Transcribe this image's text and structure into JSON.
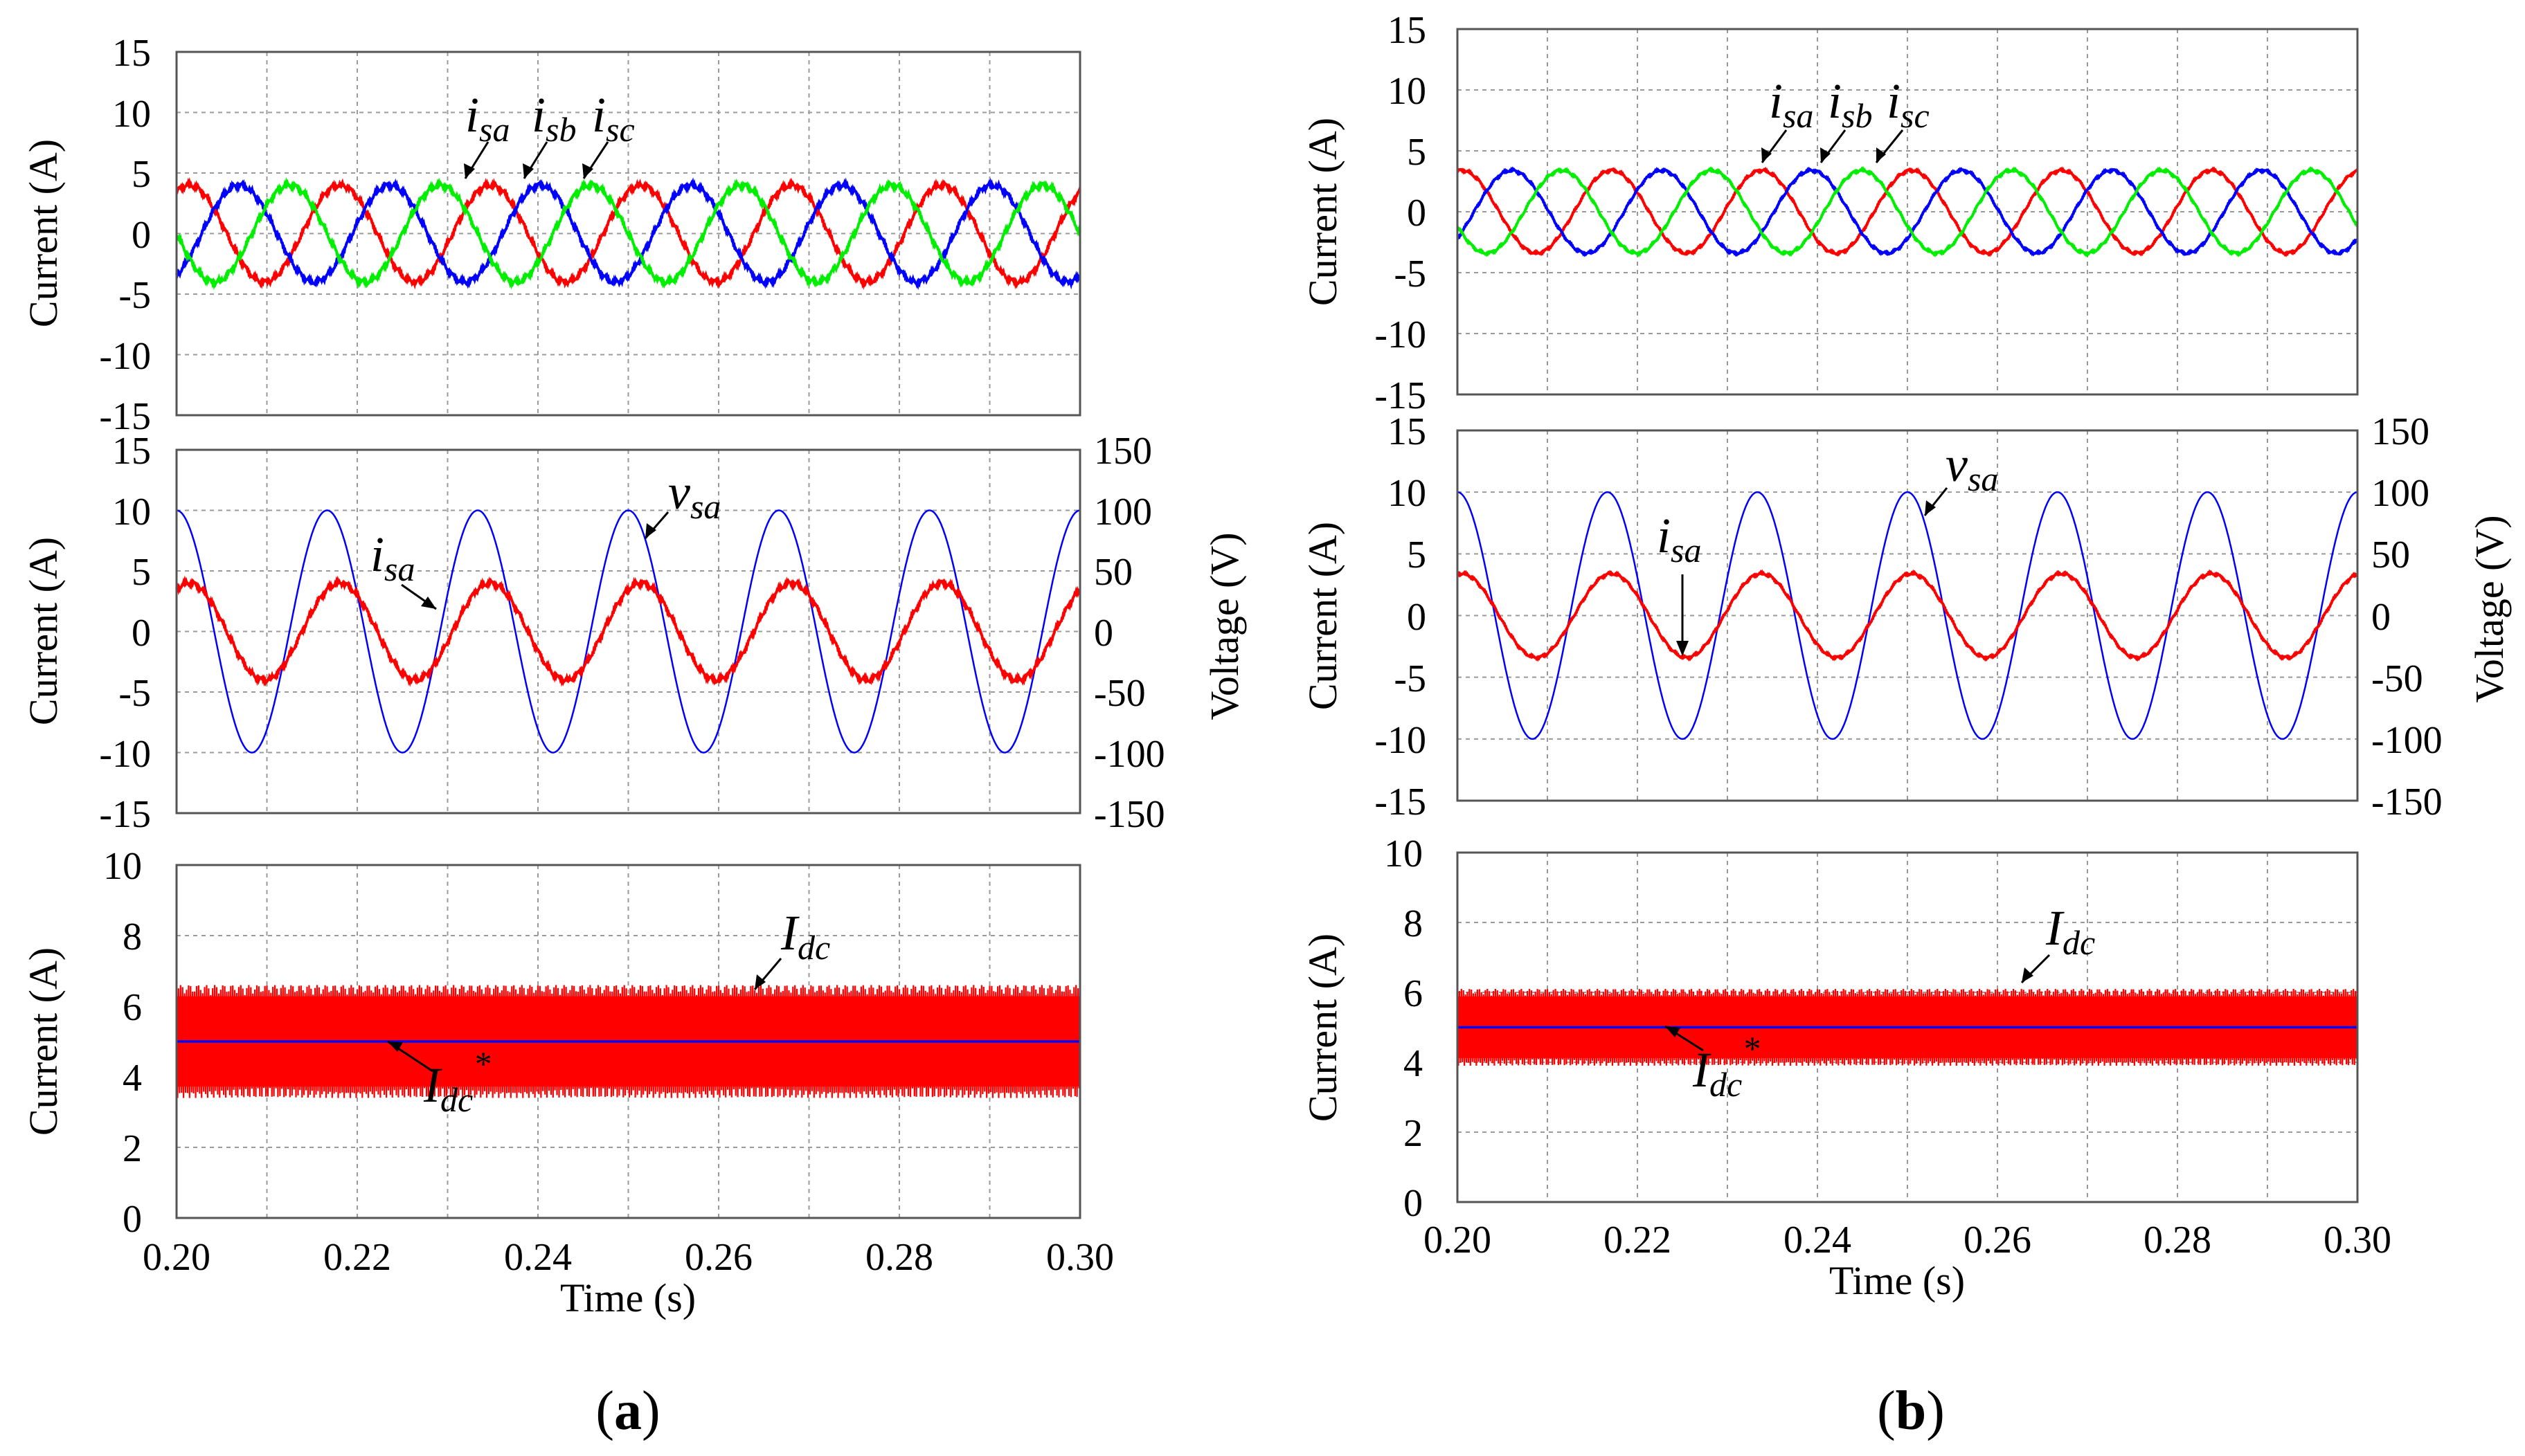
{
  "colors": {
    "red": "#ff0000",
    "blue": "#0000ff",
    "green": "#00ee00",
    "grid": "#9a9a9a",
    "frame": "#555555"
  },
  "captions": {
    "a": {
      "open": "(",
      "letter": "a",
      "close": ")"
    },
    "b": {
      "open": "(",
      "letter": "b",
      "close": ")"
    }
  },
  "chart_data": [
    {
      "id": "a-top",
      "type": "line",
      "panel": "a",
      "ylabel": "Current (A)",
      "xlim": [
        0.2,
        0.3
      ],
      "ylim": [
        -15,
        15
      ],
      "ytick_labels": [
        "-15",
        "-10",
        "-5",
        "0",
        "5",
        "10",
        "15"
      ],
      "ytick_values": [
        -15,
        -10,
        -5,
        0,
        5,
        10,
        15
      ],
      "series": [
        {
          "name": "i_sa",
          "color": "#ff0000",
          "amplitude": 4.0,
          "frequency_hz": 60,
          "phase_deg": 60,
          "noise": 0.25
        },
        {
          "name": "i_sb",
          "color": "#0000ff",
          "amplitude": 4.0,
          "frequency_hz": 60,
          "phase_deg": -60,
          "noise": 0.25
        },
        {
          "name": "i_sc",
          "color": "#00ee00",
          "amplitude": 4.0,
          "frequency_hz": 60,
          "phase_deg": 180,
          "noise": 0.25
        }
      ],
      "annotations": [
        {
          "main": "i",
          "sub": "sa"
        },
        {
          "main": "i",
          "sub": "sb"
        },
        {
          "main": "i",
          "sub": "sc"
        }
      ]
    },
    {
      "id": "a-mid",
      "type": "line",
      "panel": "a",
      "ylabel": "Current (A)",
      "y2label": "Voltage (V)",
      "xlim": [
        0.2,
        0.3
      ],
      "ylim": [
        -15,
        15
      ],
      "y2lim": [
        -150,
        150
      ],
      "ytick_labels": [
        "-15",
        "-10",
        "-5",
        "0",
        "5",
        "10",
        "15"
      ],
      "ytick_values": [
        -15,
        -10,
        -5,
        0,
        5,
        10,
        15
      ],
      "y2tick_labels": [
        "-150",
        "-100",
        "-50",
        "0",
        "50",
        "100",
        "150"
      ],
      "y2tick_values": [
        -150,
        -100,
        -50,
        0,
        50,
        100,
        150
      ],
      "series": [
        {
          "name": "v_sa",
          "color": "#0000ff",
          "axis": "y2",
          "amplitude": 100,
          "frequency_hz": 60,
          "phase_deg": 90,
          "noise": 0
        },
        {
          "name": "i_sa",
          "color": "#ff0000",
          "axis": "y",
          "amplitude": 4.0,
          "frequency_hz": 60,
          "phase_deg": 60,
          "noise": 0.25
        }
      ],
      "annotations": [
        {
          "main": "v",
          "sub": "sa"
        },
        {
          "main": "i",
          "sub": "sa"
        }
      ]
    },
    {
      "id": "a-bot",
      "type": "line",
      "panel": "a",
      "ylabel": "Current (A)",
      "xlabel": "Time (s)",
      "xlim": [
        0.2,
        0.3
      ],
      "ylim": [
        0,
        10
      ],
      "ytick_labels": [
        "0",
        "2",
        "4",
        "6",
        "8",
        "10"
      ],
      "ytick_values": [
        0,
        2,
        4,
        6,
        8,
        10
      ],
      "xtick_labels": [
        "0.20",
        "0.22",
        "0.24",
        "0.26",
        "0.28",
        "0.30"
      ],
      "xtick_values": [
        0.2,
        0.22,
        0.24,
        0.26,
        0.28,
        0.3
      ],
      "series": [
        {
          "name": "I_dc",
          "color": "#ff0000",
          "mean": 5.0,
          "ripple_min": 3.4,
          "ripple_max": 6.6
        },
        {
          "name": "I_dc*",
          "color": "#0000ff",
          "value": 5.0
        }
      ],
      "annotations": [
        {
          "main": "I",
          "sub": "dc"
        },
        {
          "main": "I",
          "sub": "dc",
          "sup": "*"
        }
      ]
    },
    {
      "id": "b-top",
      "type": "line",
      "panel": "b",
      "ylabel": "Current (A)",
      "xlim": [
        0.2,
        0.3
      ],
      "ylim": [
        -15,
        15
      ],
      "ytick_labels": [
        "-15",
        "-10",
        "-5",
        "0",
        "5",
        "10",
        "15"
      ],
      "ytick_values": [
        -15,
        -10,
        -5,
        0,
        5,
        10,
        15
      ],
      "series": [
        {
          "name": "i_sa",
          "color": "#ff0000",
          "amplitude": 3.4,
          "frequency_hz": 60,
          "phase_deg": 80,
          "noise": 0.12
        },
        {
          "name": "i_sb",
          "color": "#0000ff",
          "amplitude": 3.4,
          "frequency_hz": 60,
          "phase_deg": -40,
          "noise": 0.12
        },
        {
          "name": "i_sc",
          "color": "#00ee00",
          "amplitude": 3.4,
          "frequency_hz": 60,
          "phase_deg": 200,
          "noise": 0.12
        }
      ],
      "annotations": [
        {
          "main": "i",
          "sub": "sa"
        },
        {
          "main": "i",
          "sub": "sb"
        },
        {
          "main": "i",
          "sub": "sc"
        }
      ]
    },
    {
      "id": "b-mid",
      "type": "line",
      "panel": "b",
      "ylabel": "Current (A)",
      "y2label": "Voltage (V)",
      "xlim": [
        0.2,
        0.3
      ],
      "ylim": [
        -15,
        15
      ],
      "y2lim": [
        -150,
        150
      ],
      "ytick_labels": [
        "-15",
        "-10",
        "-5",
        "0",
        "5",
        "10",
        "15"
      ],
      "ytick_values": [
        -15,
        -10,
        -5,
        0,
        5,
        10,
        15
      ],
      "y2tick_labels": [
        "-150",
        "-100",
        "-50",
        "0",
        "50",
        "100",
        "150"
      ],
      "y2tick_values": [
        -150,
        -100,
        -50,
        0,
        50,
        100,
        150
      ],
      "series": [
        {
          "name": "v_sa",
          "color": "#0000ff",
          "axis": "y2",
          "amplitude": 100,
          "frequency_hz": 60,
          "phase_deg": 90,
          "noise": 0
        },
        {
          "name": "i_sa",
          "color": "#ff0000",
          "axis": "y",
          "amplitude": 3.4,
          "frequency_hz": 60,
          "phase_deg": 80,
          "noise": 0.12
        }
      ],
      "annotations": [
        {
          "main": "v",
          "sub": "sa"
        },
        {
          "main": "i",
          "sub": "sa"
        }
      ]
    },
    {
      "id": "b-bot",
      "type": "line",
      "panel": "b",
      "ylabel": "Current (A)",
      "xlabel": "Time (s)",
      "xlim": [
        0.2,
        0.3
      ],
      "ylim": [
        0,
        10
      ],
      "ytick_labels": [
        "0",
        "2",
        "4",
        "6",
        "8",
        "10"
      ],
      "ytick_values": [
        0,
        2,
        4,
        6,
        8,
        10
      ],
      "xtick_labels": [
        "0.20",
        "0.22",
        "0.24",
        "0.26",
        "0.28",
        "0.30"
      ],
      "xtick_values": [
        0.2,
        0.22,
        0.24,
        0.26,
        0.28,
        0.3
      ],
      "series": [
        {
          "name": "I_dc",
          "color": "#ff0000",
          "mean": 5.0,
          "ripple_min": 3.9,
          "ripple_max": 6.1
        },
        {
          "name": "I_dc*",
          "color": "#0000ff",
          "value": 5.0
        }
      ],
      "annotations": [
        {
          "main": "I",
          "sub": "dc"
        },
        {
          "main": "I",
          "sub": "dc",
          "sup": "*"
        }
      ]
    }
  ]
}
